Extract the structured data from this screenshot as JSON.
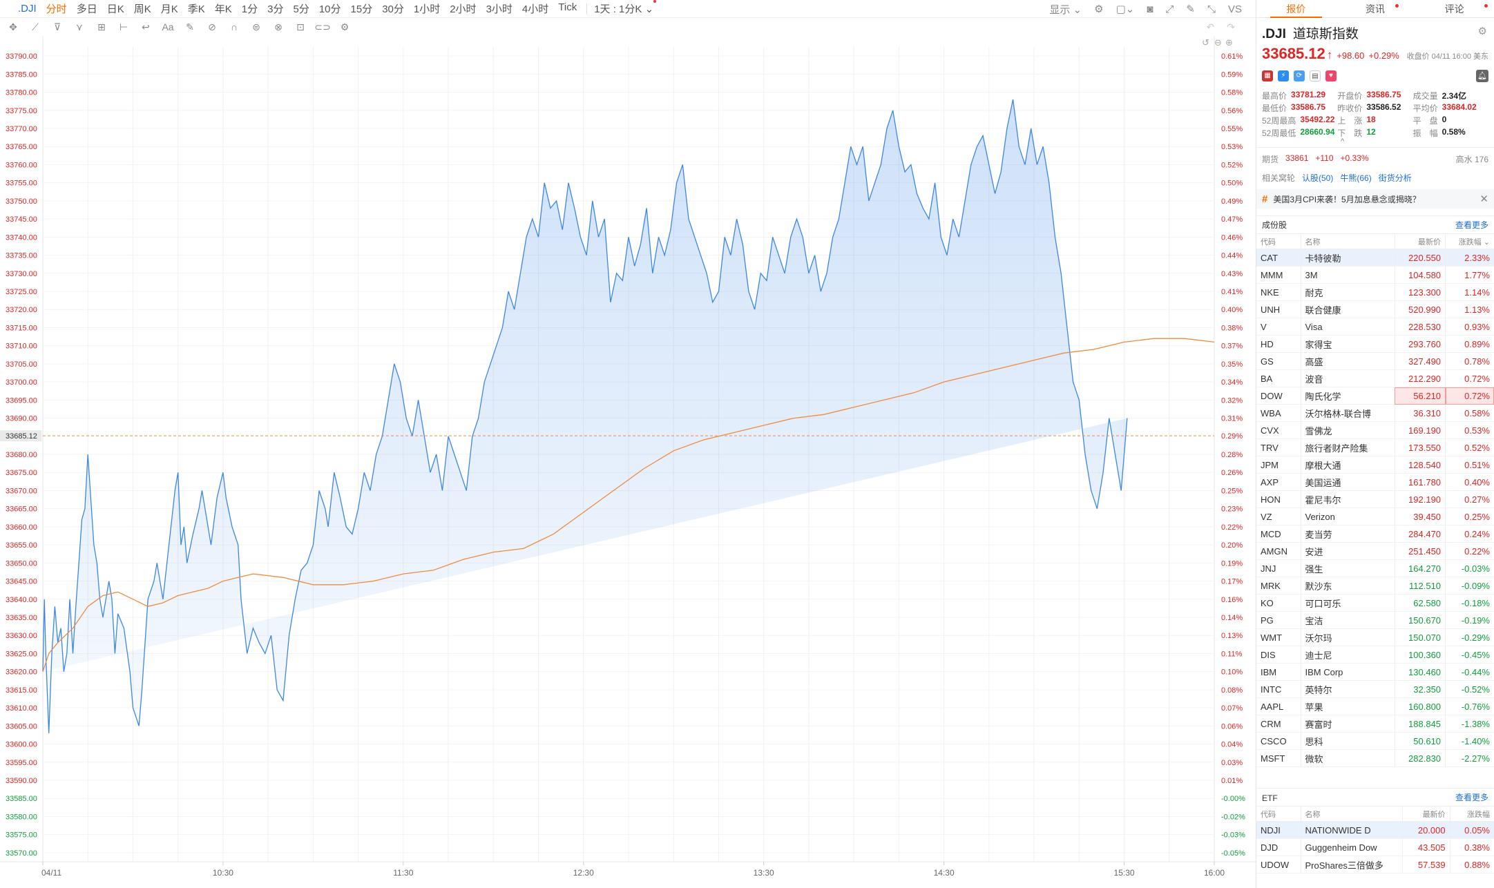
{
  "topbar": {
    "symbol": ".DJI",
    "periods": [
      "分时",
      "多日",
      "日K",
      "周K",
      "月K",
      "季K",
      "年K",
      "1分",
      "3分",
      "5分",
      "10分",
      "15分",
      "30分",
      "1小时",
      "2小时",
      "3小时",
      "4小时",
      "Tick"
    ],
    "active_period": "分时",
    "kmode_label": "1天 : 1分K ⌄",
    "display_label": "显示 ⌄",
    "vs_label": "VS"
  },
  "toolbar": {
    "tools": [
      "✥",
      "⟋",
      "⊽",
      "⋎",
      "⊞",
      "⊢",
      "↩",
      "Aa",
      "✎",
      "⊘",
      "∩",
      "⊜",
      "⊗",
      "⊡",
      "⊂⊃",
      "⚙"
    ]
  },
  "chart_data": {
    "type": "line",
    "title": "",
    "xlabel": "",
    "ylabel": "",
    "x_ticks": [
      "04/11",
      "10:30",
      "11:30",
      "12:30",
      "13:30",
      "14:30",
      "15:30",
      "16:00"
    ],
    "ylim": [
      33567.5,
      33792.5
    ],
    "y_ticks_left": [
      "33790.00",
      "33785.00",
      "33780.00",
      "33775.00",
      "33770.00",
      "33765.00",
      "33760.00",
      "33755.00",
      "33750.00",
      "33745.00",
      "33740.00",
      "33735.00",
      "33730.00",
      "33725.00",
      "33720.00",
      "33715.00",
      "33710.00",
      "33705.00",
      "33700.00",
      "33695.00",
      "33690.00",
      "33685.12",
      "33680.00",
      "33675.00",
      "33670.00",
      "33665.00",
      "33660.00",
      "33655.00",
      "33650.00",
      "33645.00",
      "33640.00",
      "33635.00",
      "33630.00",
      "33625.00",
      "33620.00",
      "33615.00",
      "33610.00",
      "33605.00",
      "33600.00",
      "33595.00",
      "33590.00",
      "33585.00",
      "33580.00",
      "33575.00",
      "33570.00"
    ],
    "y_ticks_right": [
      "0.61%",
      "0.59%",
      "0.58%",
      "0.56%",
      "0.55%",
      "0.53%",
      "0.52%",
      "0.50%",
      "0.49%",
      "0.47%",
      "0.46%",
      "0.44%",
      "0.43%",
      "0.41%",
      "0.40%",
      "0.38%",
      "0.37%",
      "0.35%",
      "0.34%",
      "0.32%",
      "0.31%",
      "0.29%",
      "0.28%",
      "0.26%",
      "0.25%",
      "0.23%",
      "0.22%",
      "0.20%",
      "0.19%",
      "0.17%",
      "0.16%",
      "0.14%",
      "0.13%",
      "0.11%",
      "0.10%",
      "0.08%",
      "0.07%",
      "0.06%",
      "0.04%",
      "0.03%",
      "0.01%",
      "-0.00%",
      "-0.02%",
      "-0.03%",
      "-0.05%"
    ],
    "prev_close": 33586.52,
    "current_price": 33685.12,
    "series": [
      {
        "name": "",
        "color": "#3b86e8",
        "t": [
          0,
          0.5,
          1,
          2,
          3,
          4,
          5,
          6,
          7,
          8,
          9,
          10,
          11,
          12,
          13,
          14,
          15,
          17,
          18,
          19,
          20,
          21,
          22,
          23,
          24,
          25,
          27,
          29,
          30,
          32,
          33,
          35,
          37,
          38,
          40,
          42,
          44,
          45,
          46,
          47,
          48,
          50,
          52,
          53,
          55,
          56,
          58,
          60,
          61,
          63,
          65,
          66,
          68,
          70,
          72,
          74,
          76,
          78,
          80,
          82,
          84,
          86,
          88,
          90,
          92,
          94,
          95,
          97,
          99,
          101,
          103,
          105,
          107,
          109,
          111,
          113,
          115,
          117,
          119,
          121,
          123,
          125,
          127,
          129,
          131,
          133,
          135,
          137,
          139,
          141,
          143,
          145,
          147,
          149,
          151,
          153,
          155,
          157,
          159,
          161,
          163,
          165,
          167,
          169,
          171,
          173,
          175,
          177,
          179,
          181,
          183,
          185,
          187,
          189,
          191,
          193,
          195,
          197,
          199,
          201,
          203,
          205,
          207,
          209,
          211,
          213,
          215,
          217,
          219,
          221,
          223,
          225,
          227,
          229,
          231,
          233,
          235,
          237,
          239,
          241,
          243,
          245,
          247,
          249,
          251,
          253,
          255,
          257,
          259,
          261,
          263,
          265,
          267,
          269,
          271,
          273,
          275,
          277,
          279,
          281,
          283,
          285,
          287,
          289,
          291,
          293,
          295,
          297,
          299,
          301,
          303,
          305,
          307,
          309,
          311,
          313,
          315,
          317,
          319,
          321,
          323,
          325,
          327,
          329,
          331,
          333,
          335,
          337,
          339,
          341,
          343,
          345,
          347,
          349,
          351,
          353,
          355,
          357,
          359,
          361,
          363,
          365,
          367,
          369,
          371,
          373,
          375,
          377,
          379,
          381,
          383,
          385,
          387,
          389,
          390
        ],
        "v": [
          33620,
          33640,
          33625,
          33603,
          33625,
          33638,
          33628,
          33632,
          33620,
          33625,
          33640,
          33625,
          33638,
          33650,
          33662,
          33665,
          33680,
          33655,
          33650,
          33640,
          33635,
          33640,
          33645,
          33640,
          33625,
          33636,
          33632,
          33620,
          33610,
          33605,
          33615,
          33640,
          33645,
          33650,
          33640,
          33655,
          33670,
          33675,
          33655,
          33660,
          33650,
          33658,
          33665,
          33670,
          33660,
          33655,
          33668,
          33675,
          33668,
          33660,
          33655,
          33640,
          33625,
          33632,
          33628,
          33625,
          33630,
          33615,
          33612,
          33630,
          33640,
          33648,
          33650,
          33655,
          33670,
          33665,
          33660,
          33675,
          33668,
          33660,
          33658,
          33665,
          33675,
          33670,
          33680,
          33685,
          33695,
          33705,
          33700,
          33690,
          33685,
          33695,
          33685,
          33675,
          33680,
          33670,
          33685,
          33680,
          33675,
          33670,
          33685,
          33690,
          33700,
          33705,
          33710,
          33715,
          33725,
          33720,
          33730,
          33740,
          33745,
          33740,
          33755,
          33748,
          33750,
          33742,
          33755,
          33748,
          33740,
          33735,
          33750,
          33740,
          33745,
          33722,
          33730,
          33728,
          33740,
          33732,
          33738,
          33748,
          33730,
          33740,
          33735,
          33742,
          33755,
          33760,
          33745,
          33740,
          33735,
          33730,
          33722,
          33725,
          33740,
          33735,
          33745,
          33738,
          33725,
          33720,
          33730,
          33728,
          33740,
          33735,
          33730,
          33740,
          33745,
          33740,
          33730,
          33735,
          33725,
          33730,
          33740,
          33745,
          33755,
          33765,
          33760,
          33765,
          33750,
          33755,
          33760,
          33770,
          33775,
          33765,
          33758,
          33760,
          33752,
          33748,
          33745,
          33755,
          33740,
          33735,
          33745,
          33740,
          33750,
          33760,
          33765,
          33768,
          33760,
          33752,
          33758,
          33770,
          33778,
          33765,
          33760,
          33770,
          33760,
          33765,
          33755,
          33740,
          33730,
          33715,
          33700,
          33695,
          33680,
          33670,
          33665,
          33675,
          33690,
          33680,
          33670,
          33690
        ]
      },
      {
        "name": "",
        "color": "#f08a3c",
        "t": [
          0,
          2,
          5,
          10,
          15,
          20,
          25,
          30,
          35,
          40,
          45,
          50,
          55,
          60,
          65,
          70,
          80,
          90,
          100,
          110,
          120,
          130,
          140,
          150,
          160,
          170,
          180,
          190,
          200,
          210,
          220,
          230,
          240,
          250,
          260,
          270,
          280,
          290,
          300,
          310,
          320,
          330,
          340,
          350,
          360,
          370,
          380,
          390
        ],
        "v": [
          33620,
          33625,
          33628,
          33632,
          33638,
          33641,
          33642,
          33640,
          33638,
          33639,
          33641,
          33642,
          33643,
          33645,
          33646,
          33647,
          33646,
          33644,
          33644,
          33645,
          33647,
          33648,
          33651,
          33653,
          33654,
          33658,
          33664,
          33670,
          33676,
          33681,
          33684,
          33686,
          33688,
          33690,
          33691,
          33693,
          33695,
          33697,
          33700,
          33702,
          33704,
          33706,
          33708,
          33709,
          33711,
          33712,
          33712,
          33711
        ]
      }
    ]
  },
  "right": {
    "tabs": [
      "报价",
      "资讯",
      "评论"
    ],
    "active_tab": "报价",
    "code": ".DJI",
    "name": "道琼斯指数",
    "price": "33685.12",
    "change": "+98.60",
    "change_pct": "+0.29%",
    "close_info": "收盘价 04/11 16:00 美东",
    "stats": [
      [
        {
          "l": "最高价",
          "v": "33781.29",
          "c": "red"
        },
        {
          "l": "开盘价",
          "v": "33586.75",
          "c": "red"
        },
        {
          "l": "成交量",
          "v": "2.34亿",
          "c": "dark"
        }
      ],
      [
        {
          "l": "最低价",
          "v": "33586.75",
          "c": "red"
        },
        {
          "l": "昨收价",
          "v": "33586.52",
          "c": "dark"
        },
        {
          "l": "平均价",
          "v": "33684.02",
          "c": "red"
        }
      ],
      [
        {
          "l": "52周最高",
          "v": "35492.22",
          "c": "red"
        },
        {
          "l": "上　涨",
          "v": "18",
          "c": "red"
        },
        {
          "l": "平　盘",
          "v": "0",
          "c": "dark"
        }
      ],
      [
        {
          "l": "52周最低",
          "v": "28660.94",
          "c": "green"
        },
        {
          "l": "下　跌",
          "v": "12",
          "c": "green"
        },
        {
          "l": "振　幅",
          "v": "0.58%",
          "c": "dark"
        }
      ]
    ],
    "futures": {
      "label": "期货",
      "price": "33861",
      "chg": "+110",
      "pct": "+0.33%",
      "right": "高水 176"
    },
    "related": {
      "label": "相关窝轮",
      "items": [
        "认股(50)",
        "牛熊(66)",
        "街货分析"
      ]
    },
    "news": "美国3月CPI来袭！5月加息悬念或揭晓？",
    "constituents": {
      "title": "成份股",
      "more": "查看更多",
      "headers": [
        "代码",
        "名称",
        "最新价",
        "涨跌幅 ⌄"
      ],
      "rows": [
        [
          "CAT",
          "卡特彼勒",
          "220.550",
          "2.33%"
        ],
        [
          "MMM",
          "3M",
          "104.580",
          "1.77%"
        ],
        [
          "NKE",
          "耐克",
          "123.300",
          "1.14%"
        ],
        [
          "UNH",
          "联合健康",
          "520.990",
          "1.13%"
        ],
        [
          "V",
          "Visa",
          "228.530",
          "0.93%"
        ],
        [
          "HD",
          "家得宝",
          "293.760",
          "0.89%"
        ],
        [
          "GS",
          "高盛",
          "327.490",
          "0.78%"
        ],
        [
          "BA",
          "波音",
          "212.290",
          "0.72%"
        ],
        [
          "DOW",
          "陶氏化学",
          "56.210",
          "0.72%"
        ],
        [
          "WBA",
          "沃尔格林-联合博",
          "36.310",
          "0.58%"
        ],
        [
          "CVX",
          "雪佛龙",
          "169.190",
          "0.53%"
        ],
        [
          "TRV",
          "旅行者财产险集",
          "173.550",
          "0.52%"
        ],
        [
          "JPM",
          "摩根大通",
          "128.540",
          "0.51%"
        ],
        [
          "AXP",
          "美国运通",
          "161.780",
          "0.40%"
        ],
        [
          "HON",
          "霍尼韦尔",
          "192.190",
          "0.27%"
        ],
        [
          "VZ",
          "Verizon",
          "39.450",
          "0.25%"
        ],
        [
          "MCD",
          "麦当劳",
          "284.470",
          "0.24%"
        ],
        [
          "AMGN",
          "安进",
          "251.450",
          "0.22%"
        ],
        [
          "JNJ",
          "强生",
          "164.270",
          "-0.03%"
        ],
        [
          "MRK",
          "默沙东",
          "112.510",
          "-0.09%"
        ],
        [
          "KO",
          "可口可乐",
          "62.580",
          "-0.18%"
        ],
        [
          "PG",
          "宝洁",
          "150.670",
          "-0.19%"
        ],
        [
          "WMT",
          "沃尔玛",
          "150.070",
          "-0.29%"
        ],
        [
          "DIS",
          "迪士尼",
          "100.360",
          "-0.45%"
        ],
        [
          "IBM",
          "IBM Corp",
          "130.460",
          "-0.44%"
        ],
        [
          "INTC",
          "英特尔",
          "32.350",
          "-0.52%"
        ],
        [
          "AAPL",
          "苹果",
          "160.800",
          "-0.76%"
        ],
        [
          "CRM",
          "赛富时",
          "188.845",
          "-1.38%"
        ],
        [
          "CSCO",
          "思科",
          "50.610",
          "-1.40%"
        ],
        [
          "MSFT",
          "微软",
          "282.830",
          "-2.27%"
        ]
      ]
    },
    "etf": {
      "title": "ETF",
      "more": "查看更多",
      "headers": [
        "代码",
        "名称",
        "最新价",
        "涨跌幅"
      ],
      "rows": [
        [
          "NDJI",
          "NATIONWIDE D",
          "20.000",
          "0.05%"
        ],
        [
          "DJD",
          "Guggenheim Dow",
          "43.505",
          "0.38%"
        ],
        [
          "UDOW",
          "ProShares三倍做多",
          "57.539",
          "0.88%"
        ]
      ]
    }
  },
  "colors": {
    "up": "#e02424",
    "down": "#109e3c",
    "accent": "#ff6a00",
    "line": "#3b86e8",
    "avg": "#f08a3c"
  }
}
